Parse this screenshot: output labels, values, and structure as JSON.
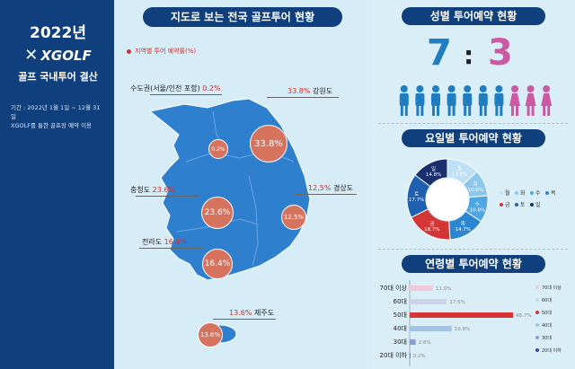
{
  "left": {
    "year": "2022년",
    "brand": "XGOLF",
    "heading": "골프 국내투어 결산",
    "notes": [
      "기간 : 2022년 1월 1일 ~ 12월 31일",
      "XGOLF를 통한 골프장 예약 이용"
    ]
  },
  "map": {
    "title": "지도로 보는 전국 골프투어 현황",
    "legend": "지역별 투어 예약률(%)",
    "regions": [
      {
        "name": "수도권(서울/인천 포함)",
        "pct": "0.2%",
        "bubble": "0.2%"
      },
      {
        "name": "강원도",
        "pct": "33.8%",
        "bubble": "33.8%"
      },
      {
        "name": "충청도",
        "pct": "23.6%",
        "bubble": "23.6%"
      },
      {
        "name": "경상도",
        "pct": "12.5%",
        "bubble": "12.5%"
      },
      {
        "name": "전라도",
        "pct": "16.4%",
        "bubble": "16.4%"
      },
      {
        "name": "제주도",
        "pct": "13.6%",
        "bubble": "13.6%"
      }
    ]
  },
  "gender": {
    "title": "성별 투어예약 현황",
    "male": "7",
    "sep": ":",
    "female": "3",
    "male_color": "#1f7dc1",
    "female_color": "#cc5aa3"
  },
  "day": {
    "title": "요일별 투어예약 현황"
  },
  "age": {
    "title": "연령별 투어예약 현황"
  },
  "chart_data": [
    {
      "type": "pie",
      "title": "요일별 투어예약 현황",
      "categories": [
        "일",
        "월",
        "화",
        "수",
        "목",
        "금",
        "토"
      ],
      "values": [
        14.8,
        13.0,
        10.6,
        10.8,
        14.7,
        18.7,
        17.7
      ],
      "labels": [
        "14.8%",
        "13.0%",
        "10.6%",
        "10.8%",
        "14.7%",
        "18.7%",
        "17.7%"
      ],
      "colors": [
        "#1a2f6e",
        "#bde0f6",
        "#8cc8ee",
        "#4ea7e2",
        "#2d86d2",
        "#d43636",
        "#2060b0"
      ],
      "donut": true,
      "legend_order": [
        "월",
        "화",
        "수",
        "목",
        "금",
        "토",
        "일"
      ]
    },
    {
      "type": "bar",
      "orientation": "horizontal",
      "title": "연령별 투어예약 현황",
      "categories": [
        "70대 이상",
        "60대",
        "50대",
        "40대",
        "30대",
        "20대 이하"
      ],
      "values": [
        11.0,
        17.5,
        48.7,
        19.8,
        2.8,
        0.2
      ],
      "labels": [
        "11.0%",
        "17.5%",
        "48.7%",
        "19.8%",
        "2.8%",
        "0.2%"
      ],
      "colors": [
        "#f2c9d8",
        "#cdd3ea",
        "#d43636",
        "#a3c3e6",
        "#8a9dd0",
        "#2f4f9a"
      ],
      "xlim": [
        0,
        55
      ],
      "legend": [
        "70대 이상",
        "60대",
        "50대",
        "40대",
        "30대",
        "20대 이하"
      ],
      "legend_position": "right"
    }
  ]
}
